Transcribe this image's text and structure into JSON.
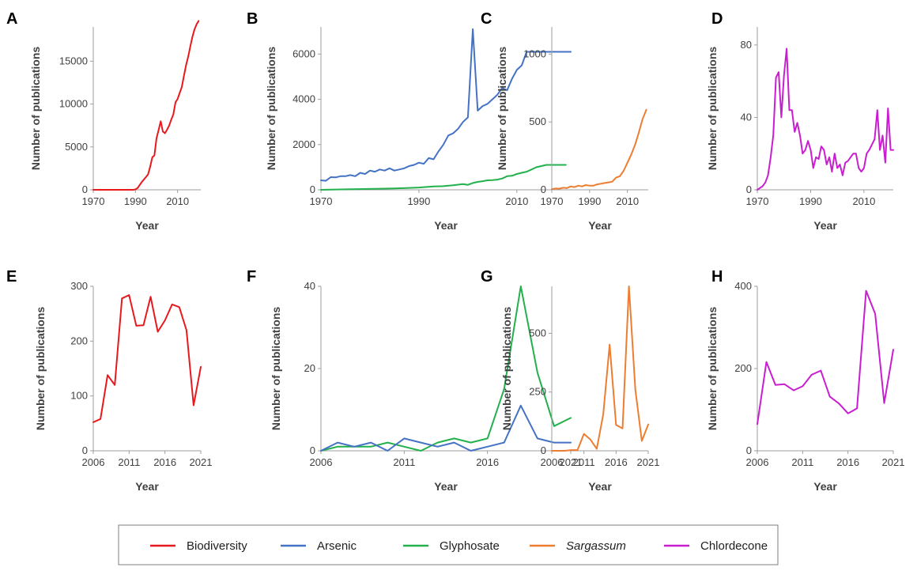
{
  "colors": {
    "biodiversity": "#e8191d",
    "arsenic": "#4472c4",
    "glyphosate": "#22b14c",
    "sargassum": "#ed7d31",
    "chlordecone": "#c81ed0",
    "axis": "#9e9e9e"
  },
  "legend": {
    "placement": "bottom-center",
    "items": [
      {
        "key": "biodiversity",
        "label": "Biodiversity",
        "italic": false
      },
      {
        "key": "arsenic",
        "label": "Arsenic",
        "italic": false
      },
      {
        "key": "glyphosate",
        "label": "Glyphosate",
        "italic": false
      },
      {
        "key": "sargassum",
        "label": "Sargassum",
        "italic": true
      },
      {
        "key": "chlordecone",
        "label": "Chlordecone",
        "italic": false
      }
    ]
  },
  "chart_data": [
    {
      "panel": "A",
      "type": "line",
      "xlabel": "Year",
      "ylabel": "Number of publications",
      "xlim": [
        1970,
        2021
      ],
      "xticks": [
        1970,
        1990,
        2010
      ],
      "ylim": [
        0,
        19000
      ],
      "yticks": [
        0,
        5000,
        10000,
        15000
      ],
      "series": [
        {
          "key": "biodiversity",
          "name": "Biodiversity",
          "x": [
            1970,
            1975,
            1980,
            1985,
            1989,
            1990,
            1991,
            1992,
            1993,
            1994,
            1995,
            1996,
            1997,
            1998,
            1999,
            2000,
            2001,
            2002,
            2003,
            2004,
            2005,
            2006,
            2007,
            2008,
            2009,
            2010,
            2011,
            2012,
            2013,
            2014,
            2015,
            2016,
            2017,
            2018,
            2019,
            2020
          ],
          "y": [
            0,
            0,
            0,
            0,
            0,
            50,
            200,
            550,
            900,
            1200,
            1500,
            1800,
            2700,
            3800,
            4000,
            6000,
            7000,
            8000,
            6800,
            6600,
            7000,
            7500,
            8200,
            8800,
            10200,
            10600,
            11300,
            12000,
            13300,
            14500,
            15500,
            16700,
            17800,
            18700,
            19300,
            19700
          ]
        }
      ]
    },
    {
      "panel": "B",
      "type": "line",
      "xlabel": "Year",
      "ylabel": "Number of publications",
      "xlim": [
        1970,
        2021
      ],
      "xticks": [
        1970,
        1990,
        2010
      ],
      "ylim": [
        0,
        7200
      ],
      "yticks": [
        0,
        2000,
        4000,
        6000
      ],
      "series": [
        {
          "key": "arsenic",
          "name": "Arsenic",
          "x": [
            1970,
            1971,
            1972,
            1973,
            1974,
            1975,
            1976,
            1977,
            1978,
            1979,
            1980,
            1981,
            1982,
            1983,
            1984,
            1985,
            1986,
            1987,
            1988,
            1989,
            1990,
            1991,
            1992,
            1993,
            1994,
            1995,
            1996,
            1997,
            1998,
            1999,
            2000,
            2001,
            2002,
            2003,
            2004,
            2005,
            2006,
            2007,
            2008,
            2009,
            2010,
            2011,
            2012,
            2013,
            2014,
            2015,
            2016,
            2017,
            2018,
            2019,
            2020,
            2021
          ],
          "y": [
            420,
            400,
            560,
            550,
            600,
            600,
            650,
            600,
            750,
            700,
            850,
            800,
            900,
            850,
            950,
            850,
            900,
            950,
            1050,
            1100,
            1200,
            1150,
            1400,
            1350,
            1700,
            2000,
            2400,
            2500,
            2700,
            3000,
            3200,
            7100,
            3500,
            3700,
            3800,
            4000,
            4200,
            4500,
            4400,
            4900,
            5300,
            5500,
            6100,
            6100,
            6100,
            6100,
            6100,
            6100,
            6100,
            6100,
            6100,
            6100
          ]
        },
        {
          "key": "glyphosate",
          "name": "Glyphosate",
          "x": [
            1970,
            1975,
            1980,
            1985,
            1990,
            1993,
            1995,
            1997,
            1999,
            2000,
            2001,
            2002,
            2003,
            2004,
            2005,
            2006,
            2007,
            2008,
            2009,
            2010,
            2011,
            2012,
            2013,
            2014,
            2015,
            2016,
            2017,
            2018,
            2019,
            2020
          ],
          "y": [
            0,
            20,
            40,
            60,
            100,
            150,
            160,
            200,
            250,
            220,
            300,
            350,
            380,
            420,
            430,
            450,
            500,
            600,
            620,
            700,
            750,
            800,
            900,
            1000,
            1050,
            1100,
            1100,
            1100,
            1100,
            1100
          ]
        }
      ]
    },
    {
      "panel": "C",
      "type": "line",
      "xlabel": "Year",
      "ylabel": "Number of publications",
      "xlim": [
        1970,
        2021
      ],
      "xticks": [
        1970,
        1990,
        2010
      ],
      "ylim": [
        0,
        1200
      ],
      "yticks": [
        0,
        500,
        1000
      ],
      "series": [
        {
          "key": "sargassum",
          "name": "Sargassum",
          "x": [
            1970,
            1972,
            1974,
            1976,
            1978,
            1980,
            1982,
            1984,
            1986,
            1988,
            1990,
            1992,
            1994,
            1996,
            1998,
            2000,
            2002,
            2004,
            2006,
            2008,
            2010,
            2012,
            2014,
            2016,
            2018,
            2020
          ],
          "y": [
            5,
            10,
            8,
            15,
            12,
            25,
            20,
            30,
            25,
            35,
            30,
            30,
            40,
            45,
            50,
            55,
            60,
            90,
            100,
            140,
            200,
            260,
            330,
            420,
            520,
            590
          ]
        }
      ]
    },
    {
      "panel": "D",
      "type": "line",
      "xlabel": "Year",
      "ylabel": "Number of publications",
      "xlim": [
        1970,
        2021
      ],
      "xticks": [
        1970,
        1990,
        2010
      ],
      "ylim": [
        0,
        90
      ],
      "yticks": [
        0,
        40,
        80
      ],
      "series": [
        {
          "key": "chlordecone",
          "name": "Chlordecone",
          "x": [
            1970,
            1971,
            1972,
            1973,
            1974,
            1975,
            1976,
            1977,
            1978,
            1979,
            1980,
            1981,
            1982,
            1983,
            1984,
            1985,
            1986,
            1987,
            1988,
            1989,
            1990,
            1991,
            1992,
            1993,
            1994,
            1995,
            1996,
            1997,
            1998,
            1999,
            2000,
            2001,
            2002,
            2003,
            2004,
            2005,
            2006,
            2007,
            2008,
            2009,
            2010,
            2011,
            2012,
            2013,
            2014,
            2015,
            2016,
            2017,
            2018,
            2019,
            2020,
            2021
          ],
          "y": [
            0,
            1,
            2,
            4,
            8,
            18,
            30,
            62,
            65,
            40,
            63,
            78,
            44,
            44,
            32,
            37,
            30,
            20,
            22,
            27,
            22,
            12,
            18,
            17,
            24,
            22,
            14,
            18,
            10,
            20,
            12,
            14,
            8,
            15,
            16,
            18,
            20,
            20,
            12,
            10,
            12,
            20,
            22,
            25,
            28,
            44,
            22,
            30,
            15,
            45,
            22,
            22
          ]
        }
      ]
    },
    {
      "panel": "E",
      "type": "line",
      "xlabel": "Year",
      "ylabel": "Number of publications",
      "xlim": [
        2006,
        2021
      ],
      "xticks": [
        2006,
        2011,
        2016,
        2021
      ],
      "ylim": [
        0,
        300
      ],
      "yticks": [
        0,
        100,
        200,
        300
      ],
      "series": [
        {
          "key": "biodiversity",
          "name": "Biodiversity",
          "x": [
            2006,
            2007,
            2008,
            2009,
            2010,
            2011,
            2012,
            2013,
            2014,
            2015,
            2016,
            2017,
            2018,
            2019,
            2020,
            2021
          ],
          "y": [
            52,
            58,
            138,
            120,
            278,
            284,
            228,
            229,
            281,
            217,
            238,
            267,
            262,
            220,
            83,
            153
          ]
        }
      ]
    },
    {
      "panel": "F",
      "type": "line",
      "xlabel": "Year",
      "ylabel": "Number of publications",
      "xlim": [
        2006,
        2021
      ],
      "xticks": [
        2006,
        2011,
        2016,
        2021
      ],
      "ylim": [
        0,
        40
      ],
      "yticks": [
        0,
        20,
        40
      ],
      "series": [
        {
          "key": "glyphosate",
          "name": "Glyphosate",
          "x": [
            2006,
            2007,
            2008,
            2009,
            2010,
            2011,
            2012,
            2013,
            2014,
            2015,
            2016,
            2017,
            2018,
            2019,
            2020,
            2021
          ],
          "y": [
            0,
            1,
            1,
            1,
            2,
            1,
            0,
            2,
            3,
            2,
            3,
            15,
            40,
            19,
            6,
            8
          ]
        },
        {
          "key": "arsenic",
          "name": "Arsenic",
          "x": [
            2006,
            2007,
            2008,
            2009,
            2010,
            2011,
            2012,
            2013,
            2014,
            2015,
            2016,
            2017,
            2018,
            2019,
            2020,
            2021
          ],
          "y": [
            0,
            2,
            1,
            2,
            0,
            3,
            2,
            1,
            2,
            0,
            1,
            2,
            11,
            3,
            2,
            2
          ]
        }
      ]
    },
    {
      "panel": "G",
      "type": "line",
      "xlabel": "Year",
      "ylabel": "Number of publications",
      "xlim": [
        2006,
        2021
      ],
      "xticks": [
        2006,
        2011,
        2016,
        2021
      ],
      "ylim": [
        0,
        700
      ],
      "yticks": [
        0,
        250,
        500
      ],
      "series": [
        {
          "key": "sargassum",
          "name": "Sargassum",
          "x": [
            2006,
            2007,
            2008,
            2009,
            2010,
            2011,
            2012,
            2013,
            2014,
            2015,
            2016,
            2017,
            2018,
            2019,
            2020,
            2021
          ],
          "y": [
            0,
            0,
            0,
            3,
            3,
            72,
            48,
            8,
            155,
            452,
            110,
            95,
            700,
            260,
            42,
            112
          ]
        }
      ]
    },
    {
      "panel": "H",
      "type": "line",
      "xlabel": "Year",
      "ylabel": "Number of publications",
      "xlim": [
        2006,
        2021
      ],
      "xticks": [
        2006,
        2011,
        2016,
        2021
      ],
      "ylim": [
        0,
        400
      ],
      "yticks": [
        0,
        200,
        400
      ],
      "series": [
        {
          "key": "chlordecone",
          "name": "Chlordecone",
          "x": [
            2006,
            2007,
            2008,
            2009,
            2010,
            2011,
            2012,
            2013,
            2014,
            2015,
            2016,
            2017,
            2018,
            2019,
            2020,
            2021
          ],
          "y": [
            65,
            216,
            160,
            162,
            147,
            157,
            185,
            195,
            132,
            115,
            91,
            103,
            389,
            333,
            116,
            246
          ]
        }
      ]
    }
  ]
}
